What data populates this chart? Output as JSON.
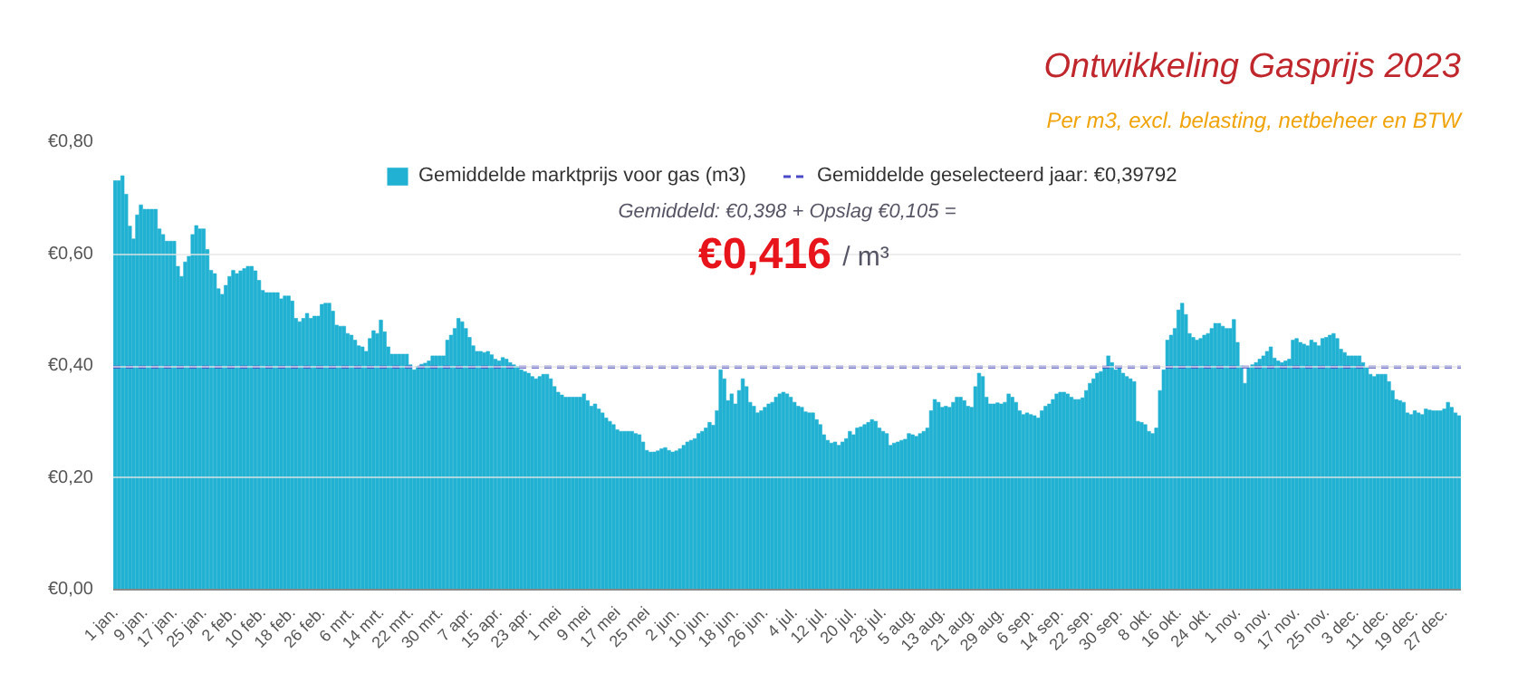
{
  "chart_data": {
    "type": "bar",
    "title": "Ontwikkeling Gasprijs 2023",
    "subtitle": "Per m3, excl. belasting, netbeheer en BTW",
    "categories": [
      "1 jan.",
      null,
      null,
      null,
      null,
      null,
      null,
      null,
      "9 jan.",
      null,
      null,
      null,
      null,
      null,
      null,
      null,
      "17 jan.",
      null,
      null,
      null,
      null,
      null,
      null,
      null,
      "25 jan.",
      null,
      null,
      null,
      null,
      null,
      null,
      null,
      "2 feb.",
      null,
      null,
      null,
      null,
      null,
      null,
      null,
      "10 feb.",
      null,
      null,
      null,
      null,
      null,
      null,
      null,
      "18 feb.",
      null,
      null,
      null,
      null,
      null,
      null,
      null,
      "26 feb.",
      null,
      null,
      null,
      null,
      null,
      null,
      null,
      "6 mrt.",
      null,
      null,
      null,
      null,
      null,
      null,
      null,
      "14 mrt.",
      null,
      null,
      null,
      null,
      null,
      null,
      null,
      "22 mrt.",
      null,
      null,
      null,
      null,
      null,
      null,
      null,
      "30 mrt.",
      null,
      null,
      null,
      null,
      null,
      null,
      null,
      "7 apr.",
      null,
      null,
      null,
      null,
      null,
      null,
      null,
      "15 apr.",
      null,
      null,
      null,
      null,
      null,
      null,
      null,
      "23 apr.",
      null,
      null,
      null,
      null,
      null,
      null,
      null,
      "1 mei",
      null,
      null,
      null,
      null,
      null,
      null,
      null,
      "9 mei",
      null,
      null,
      null,
      null,
      null,
      null,
      null,
      "17 mei",
      null,
      null,
      null,
      null,
      null,
      null,
      null,
      "25 mei",
      null,
      null,
      null,
      null,
      null,
      null,
      null,
      "2 jun.",
      null,
      null,
      null,
      null,
      null,
      null,
      null,
      "10 jun.",
      null,
      null,
      null,
      null,
      null,
      null,
      null,
      "18 jun.",
      null,
      null,
      null,
      null,
      null,
      null,
      null,
      "26 jun.",
      null,
      null,
      null,
      null,
      null,
      null,
      null,
      "4 jul.",
      null,
      null,
      null,
      null,
      null,
      null,
      null,
      "12 jul.",
      null,
      null,
      null,
      null,
      null,
      null,
      null,
      "20 jul.",
      null,
      null,
      null,
      null,
      null,
      null,
      null,
      "28 jul.",
      null,
      null,
      null,
      null,
      null,
      null,
      null,
      "5 aug.",
      null,
      null,
      null,
      null,
      null,
      null,
      null,
      "13 aug.",
      null,
      null,
      null,
      null,
      null,
      null,
      null,
      "21 aug.",
      null,
      null,
      null,
      null,
      null,
      null,
      null,
      "29 aug.",
      null,
      null,
      null,
      null,
      null,
      null,
      null,
      "6 sep.",
      null,
      null,
      null,
      null,
      null,
      null,
      null,
      "14 sep.",
      null,
      null,
      null,
      null,
      null,
      null,
      null,
      "22 sep.",
      null,
      null,
      null,
      null,
      null,
      null,
      null,
      "30 sep.",
      null,
      null,
      null,
      null,
      null,
      null,
      null,
      "8 okt.",
      null,
      null,
      null,
      null,
      null,
      null,
      null,
      "16 okt.",
      null,
      null,
      null,
      null,
      null,
      null,
      null,
      "24 okt.",
      null,
      null,
      null,
      null,
      null,
      null,
      null,
      "1 nov.",
      null,
      null,
      null,
      null,
      null,
      null,
      null,
      "9 nov.",
      null,
      null,
      null,
      null,
      null,
      null,
      null,
      "17 nov.",
      null,
      null,
      null,
      null,
      null,
      null,
      null,
      "25 nov.",
      null,
      null,
      null,
      null,
      null,
      null,
      null,
      "3 dec.",
      null,
      null,
      null,
      null,
      null,
      null,
      null,
      "11 dec.",
      null,
      null,
      null,
      null,
      null,
      null,
      null,
      "19 dec.",
      null,
      null,
      null,
      null,
      null,
      null,
      null,
      "27 dec.",
      null,
      null,
      null,
      null
    ],
    "series": [
      {
        "name": "Gemiddelde marktprijs voor gas (m3)",
        "color": "#21b1d2",
        "values": [
          0.731,
          0.731,
          0.74,
          0.707,
          0.65,
          0.627,
          0.67,
          0.688,
          0.68,
          0.68,
          0.68,
          0.68,
          0.645,
          0.635,
          0.623,
          0.623,
          0.623,
          0.578,
          0.56,
          0.586,
          0.596,
          0.635,
          0.651,
          0.645,
          0.645,
          0.608,
          0.571,
          0.565,
          0.538,
          0.528,
          0.544,
          0.56,
          0.571,
          0.565,
          0.57,
          0.574,
          0.578,
          0.578,
          0.57,
          0.553,
          0.535,
          0.531,
          0.531,
          0.531,
          0.531,
          0.52,
          0.525,
          0.525,
          0.516,
          0.485,
          0.479,
          0.485,
          0.494,
          0.485,
          0.489,
          0.489,
          0.51,
          0.512,
          0.512,
          0.498,
          0.473,
          0.471,
          0.471,
          0.458,
          0.455,
          0.446,
          0.436,
          0.434,
          0.426,
          0.449,
          0.463,
          0.458,
          0.482,
          0.461,
          0.434,
          0.421,
          0.421,
          0.421,
          0.421,
          0.421,
          0.402,
          0.393,
          0.399,
          0.403,
          0.405,
          0.409,
          0.418,
          0.418,
          0.418,
          0.418,
          0.446,
          0.455,
          0.467,
          0.485,
          0.479,
          0.467,
          0.451,
          0.436,
          0.426,
          0.426,
          0.424,
          0.426,
          0.42,
          0.412,
          0.409,
          0.415,
          0.412,
          0.406,
          0.402,
          0.399,
          0.393,
          0.39,
          0.387,
          0.381,
          0.377,
          0.381,
          0.385,
          0.385,
          0.377,
          0.363,
          0.353,
          0.348,
          0.344,
          0.344,
          0.344,
          0.344,
          0.344,
          0.35,
          0.338,
          0.328,
          0.332,
          0.323,
          0.316,
          0.307,
          0.301,
          0.295,
          0.286,
          0.283,
          0.283,
          0.283,
          0.283,
          0.279,
          0.277,
          0.264,
          0.249,
          0.246,
          0.246,
          0.248,
          0.252,
          0.254,
          0.249,
          0.246,
          0.248,
          0.252,
          0.258,
          0.264,
          0.267,
          0.27,
          0.279,
          0.283,
          0.289,
          0.299,
          0.294,
          0.32,
          0.393,
          0.377,
          0.338,
          0.35,
          0.332,
          0.356,
          0.377,
          0.363,
          0.335,
          0.328,
          0.316,
          0.32,
          0.326,
          0.332,
          0.335,
          0.344,
          0.35,
          0.353,
          0.35,
          0.344,
          0.335,
          0.328,
          0.326,
          0.318,
          0.316,
          0.316,
          0.304,
          0.295,
          0.277,
          0.267,
          0.262,
          0.264,
          0.258,
          0.264,
          0.27,
          0.283,
          0.277,
          0.289,
          0.291,
          0.295,
          0.299,
          0.304,
          0.301,
          0.289,
          0.283,
          0.279,
          0.258,
          0.262,
          0.264,
          0.267,
          0.269,
          0.279,
          0.277,
          0.274,
          0.279,
          0.283,
          0.289,
          0.32,
          0.34,
          0.335,
          0.326,
          0.328,
          0.326,
          0.335,
          0.344,
          0.344,
          0.338,
          0.328,
          0.326,
          0.363,
          0.387,
          0.381,
          0.344,
          0.332,
          0.332,
          0.334,
          0.332,
          0.335,
          0.35,
          0.344,
          0.335,
          0.32,
          0.313,
          0.316,
          0.313,
          0.311,
          0.307,
          0.32,
          0.328,
          0.332,
          0.34,
          0.35,
          0.353,
          0.353,
          0.35,
          0.344,
          0.34,
          0.34,
          0.343,
          0.356,
          0.369,
          0.377,
          0.387,
          0.39,
          0.399,
          0.418,
          0.406,
          0.393,
          0.397,
          0.387,
          0.381,
          0.377,
          0.372,
          0.301,
          0.299,
          0.295,
          0.283,
          0.279,
          0.289,
          0.356,
          0.393,
          0.446,
          0.455,
          0.467,
          0.5,
          0.512,
          0.492,
          0.458,
          0.451,
          0.446,
          0.449,
          0.455,
          0.458,
          0.467,
          0.476,
          0.476,
          0.471,
          0.467,
          0.467,
          0.483,
          0.442,
          0.4,
          0.369,
          0.397,
          0.402,
          0.406,
          0.412,
          0.418,
          0.426,
          0.434,
          0.414,
          0.409,
          0.406,
          0.409,
          0.412,
          0.446,
          0.449,
          0.442,
          0.439,
          0.436,
          0.446,
          0.442,
          0.436,
          0.449,
          0.451,
          0.455,
          0.458,
          0.449,
          0.43,
          0.424,
          0.418,
          0.418,
          0.418,
          0.418,
          0.406,
          0.397,
          0.385,
          0.381,
          0.385,
          0.385,
          0.385,
          0.372,
          0.356,
          0.34,
          0.338,
          0.335,
          0.316,
          0.313,
          0.32,
          0.316,
          0.313,
          0.323,
          0.321,
          0.32,
          0.32,
          0.32,
          0.323,
          0.335,
          0.326,
          0.316,
          0.311
        ]
      }
    ],
    "ylim": [
      0,
      0.8
    ],
    "yticks": [
      {
        "value": 0,
        "label": "€0,00"
      },
      {
        "value": 0.2,
        "label": "€0,20"
      },
      {
        "value": 0.4,
        "label": "€0,40"
      },
      {
        "value": 0.6,
        "label": "€0,60"
      },
      {
        "value": 0.8,
        "label": "€0,80"
      }
    ],
    "grid": "y",
    "legend": "top",
    "ref_lines": [
      {
        "axis": "y",
        "value": 0.39792,
        "label": "Gemiddelde geselecteerd jaar: €0,39792",
        "color": "#4a4ac8",
        "line_style": "dashed"
      }
    ],
    "annotations": [
      "Gemiddeld: €0,398 + Opslag €0,105 =",
      "€0,416",
      "/ m³"
    ]
  }
}
